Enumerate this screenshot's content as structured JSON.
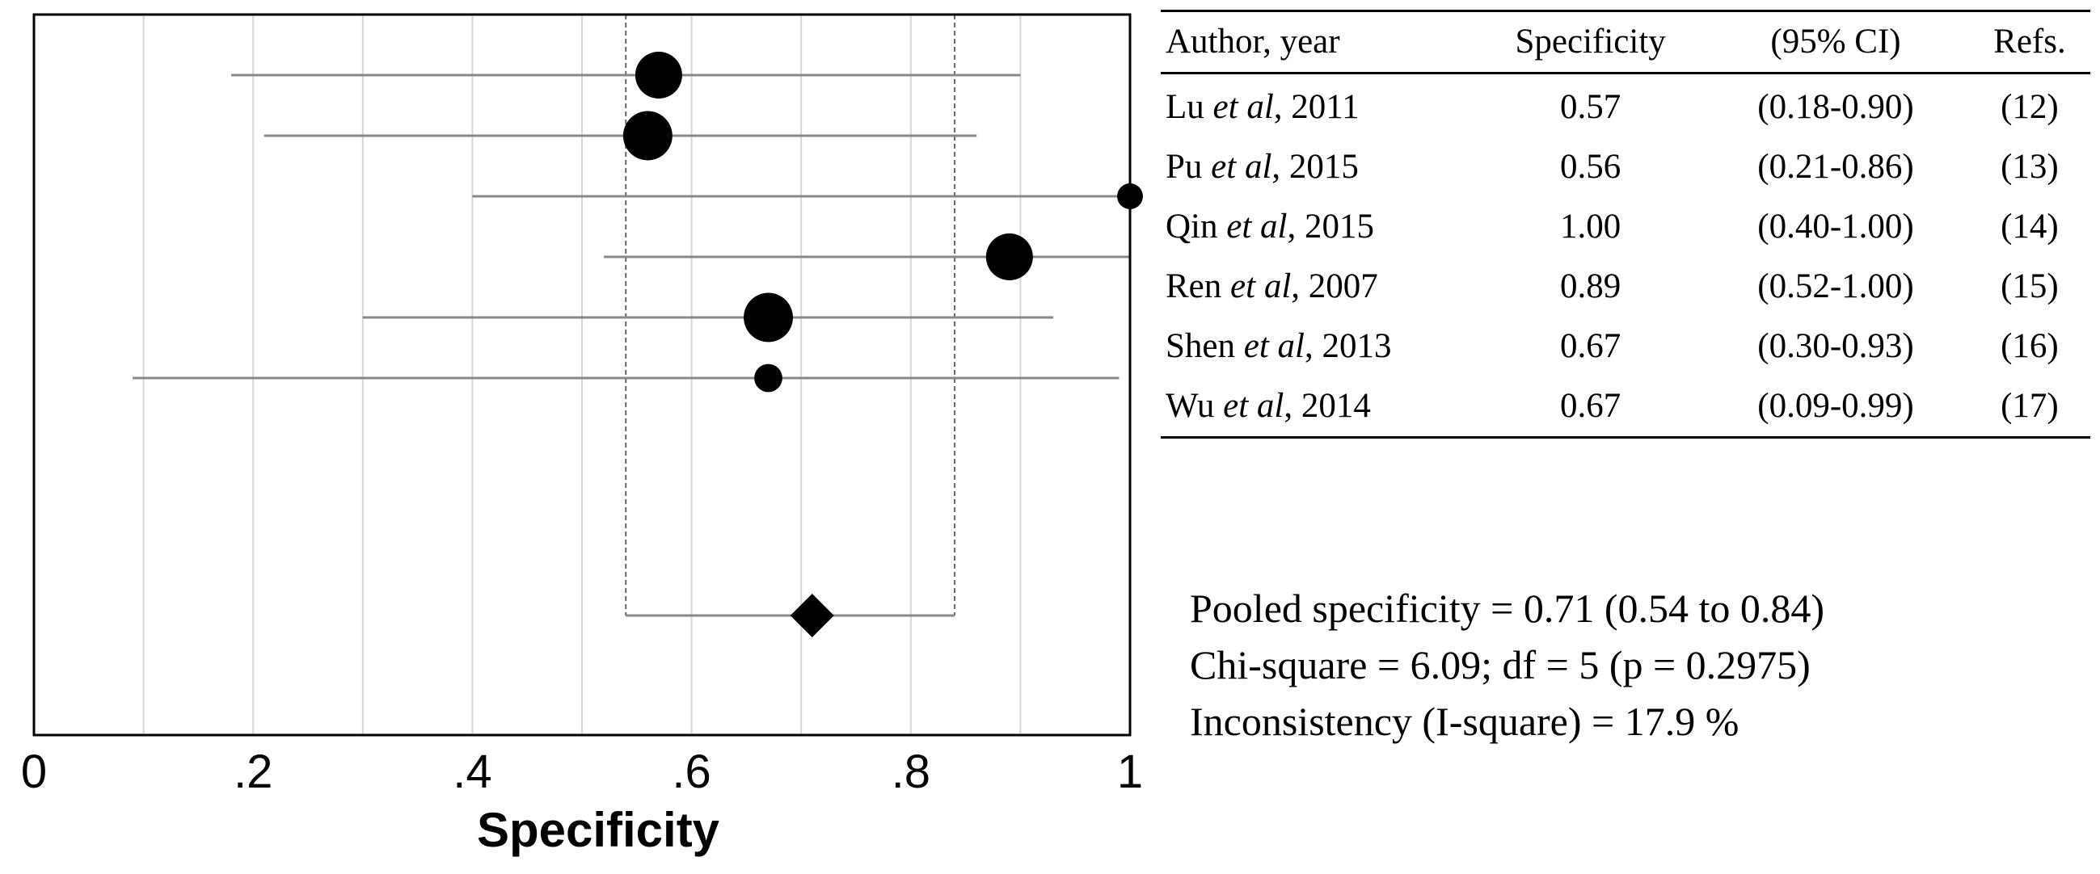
{
  "chart_data": {
    "type": "forest",
    "xlabel": "Specificity",
    "xlim": [
      0,
      1
    ],
    "ticks": [
      {
        "value": 0,
        "label": "0"
      },
      {
        "value": 0.2,
        "label": ".2"
      },
      {
        "value": 0.4,
        "label": ".4"
      },
      {
        "value": 0.6,
        "label": ".6"
      },
      {
        "value": 0.8,
        "label": ".8"
      },
      {
        "value": 1,
        "label": "1"
      }
    ],
    "grid": true,
    "studies": [
      {
        "estimate": 0.57,
        "lower": 0.18,
        "upper": 0.9,
        "weight": 1.0
      },
      {
        "estimate": 0.56,
        "lower": 0.21,
        "upper": 0.86,
        "weight": 1.05
      },
      {
        "estimate": 1.0,
        "lower": 0.4,
        "upper": 1.0,
        "weight": 0.55
      },
      {
        "estimate": 0.89,
        "lower": 0.52,
        "upper": 1.0,
        "weight": 1.0
      },
      {
        "estimate": 0.67,
        "lower": 0.3,
        "upper": 0.93,
        "weight": 1.05
      },
      {
        "estimate": 0.67,
        "lower": 0.09,
        "upper": 0.99,
        "weight": 0.6
      }
    ],
    "pooled": {
      "estimate": 0.71,
      "lower": 0.54,
      "upper": 0.84
    }
  },
  "table": {
    "headers": {
      "author": "Author, year",
      "specificity": "Specificity",
      "ci": "(95% CI)",
      "refs": "Refs."
    },
    "rows": [
      {
        "name": "Lu",
        "etal": "et al",
        "year": ", 2011",
        "specificity": "0.57",
        "ci": "(0.18-0.90)",
        "ref": "(12)"
      },
      {
        "name": "Pu",
        "etal": "et al",
        "year": ", 2015",
        "specificity": "0.56",
        "ci": "(0.21-0.86)",
        "ref": "(13)"
      },
      {
        "name": "Qin",
        "etal": "et al",
        "year": ", 2015",
        "specificity": "1.00",
        "ci": "(0.40-1.00)",
        "ref": "(14)"
      },
      {
        "name": "Ren",
        "etal": "et al",
        "year": ", 2007",
        "specificity": "0.89",
        "ci": "(0.52-1.00)",
        "ref": "(15)"
      },
      {
        "name": "Shen",
        "etal": "et al",
        "year": ", 2013",
        "specificity": "0.67",
        "ci": "(0.30-0.93)",
        "ref": "(16)"
      },
      {
        "name": "Wu",
        "etal": "et al",
        "year": ", 2014",
        "specificity": "0.67",
        "ci": "(0.09-0.99)",
        "ref": "(17)"
      }
    ]
  },
  "summary": {
    "pooled": "Pooled specificity = 0.71 (0.54 to 0.84)",
    "chi": "Chi-square = 6.09; df = 5 (p = 0.2975)",
    "inconsistency": "Inconsistency (I-square) = 17.9 %"
  }
}
